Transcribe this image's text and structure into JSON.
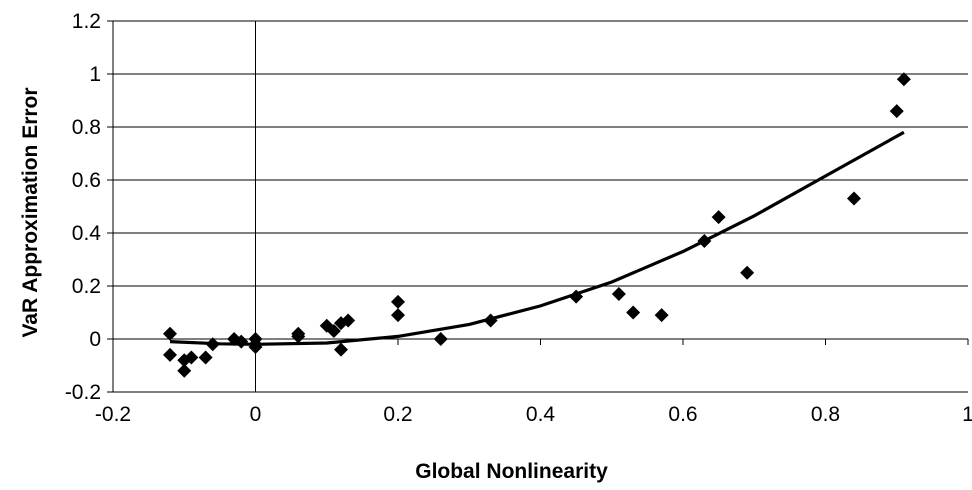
{
  "chart_data": {
    "type": "scatter",
    "title": "",
    "xlabel": "Global Nonlinearity",
    "ylabel": "VaR Approximation Error",
    "xlim": [
      -0.2,
      1.0
    ],
    "ylim": [
      -0.2,
      1.2
    ],
    "x_ticks": [
      "-0.2",
      "0",
      "0.2",
      "0.4",
      "0.6",
      "0.8",
      "1"
    ],
    "y_ticks": [
      "-0.2",
      "0",
      "0.2",
      "0.4",
      "0.6",
      "0.8",
      "1",
      "1.2"
    ],
    "grid": "horizontal",
    "legend": "none",
    "marker": "diamond",
    "marker_color": "#000000",
    "series": [
      {
        "points": [
          {
            "x": -0.12,
            "y": 0.02
          },
          {
            "x": -0.12,
            "y": -0.06
          },
          {
            "x": -0.1,
            "y": -0.08
          },
          {
            "x": -0.1,
            "y": -0.12
          },
          {
            "x": -0.09,
            "y": -0.07
          },
          {
            "x": -0.07,
            "y": -0.07
          },
          {
            "x": -0.06,
            "y": -0.02
          },
          {
            "x": -0.03,
            "y": 0.0
          },
          {
            "x": -0.02,
            "y": -0.01
          },
          {
            "x": 0.0,
            "y": 0.0
          },
          {
            "x": 0.0,
            "y": -0.02
          },
          {
            "x": 0.0,
            "y": -0.03
          },
          {
            "x": 0.06,
            "y": 0.02
          },
          {
            "x": 0.06,
            "y": 0.01
          },
          {
            "x": 0.1,
            "y": 0.05
          },
          {
            "x": 0.11,
            "y": 0.03
          },
          {
            "x": 0.12,
            "y": 0.06
          },
          {
            "x": 0.12,
            "y": -0.04
          },
          {
            "x": 0.13,
            "y": 0.07
          },
          {
            "x": 0.2,
            "y": 0.14
          },
          {
            "x": 0.2,
            "y": 0.09
          },
          {
            "x": 0.26,
            "y": 0.0
          },
          {
            "x": 0.33,
            "y": 0.07
          },
          {
            "x": 0.45,
            "y": 0.16
          },
          {
            "x": 0.51,
            "y": 0.17
          },
          {
            "x": 0.53,
            "y": 0.1
          },
          {
            "x": 0.57,
            "y": 0.09
          },
          {
            "x": 0.63,
            "y": 0.37
          },
          {
            "x": 0.65,
            "y": 0.46
          },
          {
            "x": 0.69,
            "y": 0.25
          },
          {
            "x": 0.84,
            "y": 0.53
          },
          {
            "x": 0.9,
            "y": 0.86
          },
          {
            "x": 0.91,
            "y": 0.98
          }
        ]
      }
    ],
    "trendline": {
      "type": "polynomial",
      "order": 2,
      "color": "#000000",
      "points": [
        {
          "x": -0.12,
          "y": -0.01
        },
        {
          "x": -0.05,
          "y": -0.018
        },
        {
          "x": 0.0,
          "y": -0.02
        },
        {
          "x": 0.1,
          "y": -0.015
        },
        {
          "x": 0.2,
          "y": 0.01
        },
        {
          "x": 0.3,
          "y": 0.055
        },
        {
          "x": 0.4,
          "y": 0.125
        },
        {
          "x": 0.5,
          "y": 0.215
        },
        {
          "x": 0.6,
          "y": 0.33
        },
        {
          "x": 0.7,
          "y": 0.465
        },
        {
          "x": 0.8,
          "y": 0.615
        },
        {
          "x": 0.91,
          "y": 0.78
        }
      ]
    }
  }
}
